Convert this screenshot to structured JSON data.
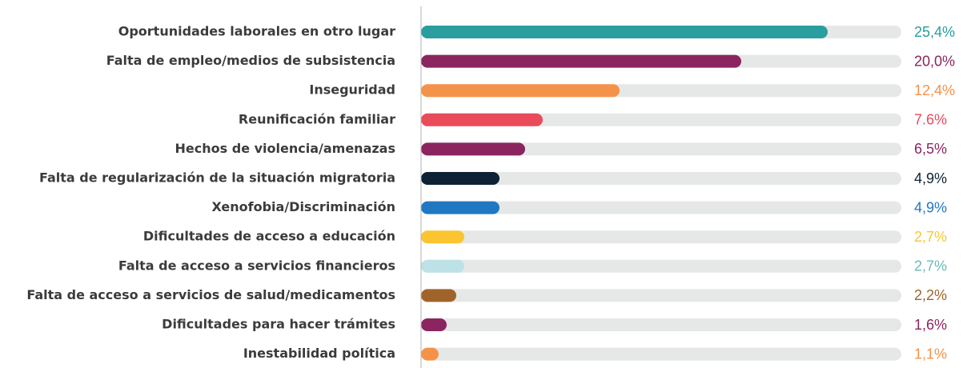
{
  "chart_data": {
    "type": "hbar",
    "categories": [
      "Oportunidades laborales en otro lugar",
      "Falta de empleo/medios de subsistencia",
      "Inseguridad",
      "Reunificación familiar",
      "Hechos de violencia/amenazas",
      "Falta de regularización de la situación migratoria",
      "Xenofobia/Discriminación",
      "Dificultades de acceso a educación",
      "Falta de acceso a servicios financieros",
      "Falta de acceso a servicios de salud/medicamentos",
      "Dificultades para hacer trámites",
      "Inestabilidad política"
    ],
    "values": [
      25.4,
      20.0,
      12.4,
      7.6,
      6.5,
      4.9,
      4.9,
      2.7,
      2.7,
      2.2,
      1.6,
      1.1
    ],
    "value_labels": [
      "25,4%",
      "20,0%",
      "12,4%",
      "7.6%",
      "6,5%",
      "4,9%",
      "4,9%",
      "2,7%",
      "2,7%",
      "2,2%",
      "1,6%",
      "1,1%"
    ],
    "colors": [
      "#2a9d9f",
      "#8b2560",
      "#f5924a",
      "#e94b5b",
      "#8b2560",
      "#0d2235",
      "#1f78c1",
      "#fbc531",
      "#bde2e6",
      "#a0642a",
      "#8b2560",
      "#f5924a"
    ],
    "value_label_colors": [
      "#2a9d9f",
      "#8b2560",
      "#f5924a",
      "#e94b5b",
      "#8b2560",
      "#0d2235",
      "#1f78c1",
      "#fbc531",
      "#6fb8b8",
      "#a0642a",
      "#8b2560",
      "#f5924a"
    ],
    "track_color": "#e6e8e8",
    "xlim": [
      0,
      30
    ]
  }
}
